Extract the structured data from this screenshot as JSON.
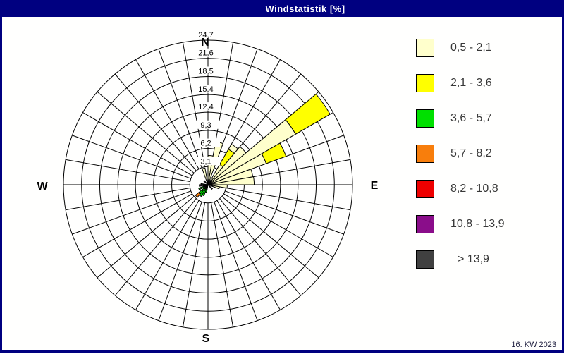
{
  "window": {
    "title": "Windstatistik [%]",
    "footer": "16. KW 2023",
    "titlebar_color": "#000080",
    "border_color": "#000080",
    "background_color": "#fffffe"
  },
  "compass": {
    "north": "N",
    "south": "S",
    "west": "W",
    "east": "E"
  },
  "legend": {
    "items": [
      {
        "label": "0,5 - 2,1",
        "color": "#FFFFCC"
      },
      {
        "label": "2,1 - 3,6",
        "color": "#FFFF00"
      },
      {
        "label": "3,6 - 5,7",
        "color": "#00E000"
      },
      {
        "label": "5,7 - 8,2",
        "color": "#F87E0C"
      },
      {
        "label": "8,2 - 10,8",
        "color": "#EE0000"
      },
      {
        "label": "10,8 - 13,9",
        "color": "#8A0D8A"
      },
      {
        "label": "> 13,9",
        "color": "#404040"
      }
    ]
  },
  "chart_data": {
    "type": "windrose-stacked-polar",
    "title": "Windstatistik [%]",
    "units": "percent frequency",
    "sector_width_deg": 10,
    "rings_pct": [
      3.1,
      6.2,
      9.3,
      12.4,
      15.4,
      18.5,
      21.6,
      24.7
    ],
    "ring_labels": [
      "3,1",
      "6,2",
      "9,3",
      "12,4",
      "15,4",
      "18,5",
      "21,6",
      "24,7"
    ],
    "max_pct": 24.7,
    "grid": {
      "spokes_every_deg": 10,
      "rings": 8,
      "inner_circle_empty": true
    },
    "speed_classes": [
      {
        "label": "0,5 - 2,1",
        "color": "#FFFFCC"
      },
      {
        "label": "2,1 - 3,6",
        "color": "#FFFF00"
      },
      {
        "label": "3,6 - 5,7",
        "color": "#00E000"
      },
      {
        "label": "5,7 - 8,2",
        "color": "#F87E0C"
      },
      {
        "label": "8,2 - 10,8",
        "color": "#EE0000"
      },
      {
        "label": "10,8 - 13,9",
        "color": "#8A0D8A"
      },
      {
        "label": "> 13,9",
        "color": "#404040"
      }
    ],
    "sectors": [
      {
        "from_deg": 340,
        "to_deg": 350,
        "segments": [
          {
            "class": 0,
            "r0": 0,
            "r1": 2.9
          }
        ]
      },
      {
        "from_deg": 0,
        "to_deg": 10,
        "segments": [
          {
            "class": 0,
            "r0": 0,
            "r1": 5.0
          }
        ]
      },
      {
        "from_deg": 10,
        "to_deg": 20,
        "segments": [
          {
            "class": 0,
            "r0": 0,
            "r1": 7.5
          }
        ]
      },
      {
        "from_deg": 30,
        "to_deg": 40,
        "segments": [
          {
            "class": 0,
            "r0": 0,
            "r1": 4.0
          },
          {
            "class": 1,
            "r0": 4.0,
            "r1": 7.0
          },
          {
            "class": 0,
            "r0": 7.0,
            "r1": 8.0
          }
        ]
      },
      {
        "from_deg": 40,
        "to_deg": 50,
        "segments": [
          {
            "class": 6,
            "r0": 0,
            "r1": 0.9
          },
          {
            "class": 0,
            "r0": 0.9,
            "r1": 8.5
          }
        ]
      },
      {
        "from_deg": 50,
        "to_deg": 60,
        "segments": [
          {
            "class": 0,
            "r0": 0,
            "r1": 17.3
          },
          {
            "class": 1,
            "r0": 17.3,
            "r1": 24.1
          }
        ]
      },
      {
        "from_deg": 60,
        "to_deg": 70,
        "segments": [
          {
            "class": 0,
            "r0": 0,
            "r1": 10.6
          },
          {
            "class": 1,
            "r0": 10.6,
            "r1": 14.2
          }
        ]
      },
      {
        "from_deg": 70,
        "to_deg": 80,
        "segments": [
          {
            "class": 0,
            "r0": 0,
            "r1": 7.8
          }
        ]
      },
      {
        "from_deg": 80,
        "to_deg": 90,
        "segments": [
          {
            "class": 0,
            "r0": 0,
            "r1": 7.9
          }
        ]
      },
      {
        "from_deg": 90,
        "to_deg": 100,
        "segments": [
          {
            "class": 0,
            "r0": 0,
            "r1": 3.3
          }
        ]
      },
      {
        "from_deg": 100,
        "to_deg": 110,
        "segments": [
          {
            "class": 6,
            "r0": 0,
            "r1": 0.8
          },
          {
            "class": 0,
            "r0": 0.8,
            "r1": 2.0
          }
        ]
      },
      {
        "from_deg": 130,
        "to_deg": 140,
        "segments": [
          {
            "class": 6,
            "r0": 0,
            "r1": 1.0
          }
        ]
      },
      {
        "from_deg": 190,
        "to_deg": 200,
        "segments": [
          {
            "class": 6,
            "r0": 0,
            "r1": 0.4
          },
          {
            "class": 2,
            "r0": 0.4,
            "r1": 1.3
          }
        ]
      },
      {
        "from_deg": 200,
        "to_deg": 210,
        "segments": [
          {
            "class": 6,
            "r0": 0,
            "r1": 0.5
          },
          {
            "class": 2,
            "r0": 0.5,
            "r1": 2.0
          }
        ]
      },
      {
        "from_deg": 210,
        "to_deg": 220,
        "segments": [
          {
            "class": 6,
            "r0": 0,
            "r1": 0.5
          },
          {
            "class": 2,
            "r0": 0.5,
            "r1": 2.3
          }
        ]
      },
      {
        "from_deg": 220,
        "to_deg": 230,
        "segments": [
          {
            "class": 6,
            "r0": 0,
            "r1": 0.6
          },
          {
            "class": 2,
            "r0": 0.6,
            "r1": 2.1
          },
          {
            "class": 3,
            "r0": 2.1,
            "r1": 2.8
          }
        ]
      },
      {
        "from_deg": 240,
        "to_deg": 250,
        "segments": [
          {
            "class": 6,
            "r0": 0,
            "r1": 0.5
          },
          {
            "class": 2,
            "r0": 0.5,
            "r1": 1.7
          }
        ]
      },
      {
        "from_deg": 250,
        "to_deg": 260,
        "segments": [
          {
            "class": 6,
            "r0": 0,
            "r1": 0.8
          }
        ]
      },
      {
        "from_deg": 260,
        "to_deg": 270,
        "segments": [
          {
            "class": 6,
            "r0": 0,
            "r1": 1.5
          }
        ]
      },
      {
        "from_deg": 270,
        "to_deg": 280,
        "segments": [
          {
            "class": 6,
            "r0": 0,
            "r1": 1.2
          }
        ]
      },
      {
        "from_deg": 310,
        "to_deg": 320,
        "segments": [
          {
            "class": 6,
            "r0": 0,
            "r1": 0.9
          }
        ]
      }
    ]
  }
}
